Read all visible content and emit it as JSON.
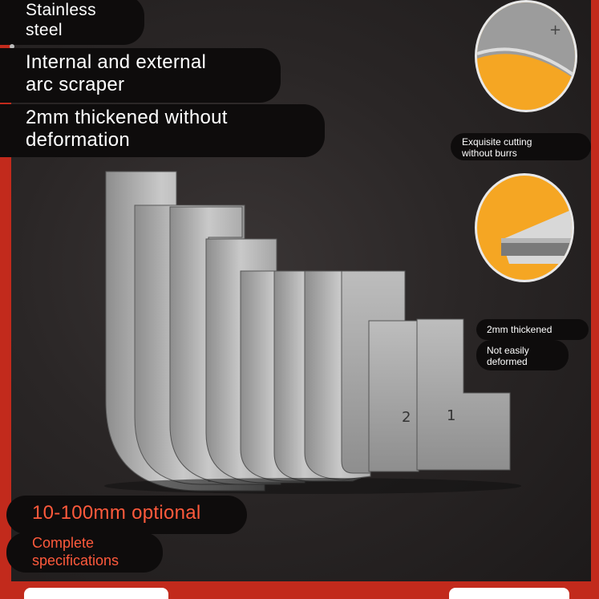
{
  "labels": {
    "stainless_1": "Stainless",
    "stainless_2": "steel",
    "arc_1": "Internal and external",
    "arc_2": "arc scraper",
    "thick_1": "2mm thickened without",
    "thick_2": "deformation",
    "cut_1": "Exquisite cutting",
    "cut_2": "without burrs",
    "thickened": "2mm thickened",
    "deformed_1": "Not easily",
    "deformed_2": "deformed",
    "optional": "10-100mm optional",
    "spec_1": "Complete",
    "spec_2": "specifications"
  },
  "blade_numbers": [
    "2",
    "1"
  ],
  "colors": {
    "frame_red": "#c22a1c",
    "accent_orange": "#f5a623",
    "label_red": "#ff5a3c"
  }
}
